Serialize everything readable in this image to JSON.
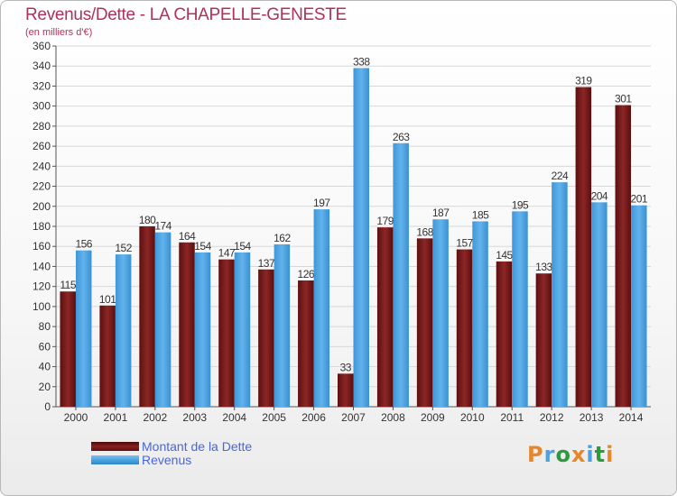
{
  "title": "Revenus/Dette - LA CHAPELLE-GENESTE",
  "subtitle": "(en milliers d'€)",
  "colors": {
    "dette": "#7a1e1e",
    "revenus": "#4aa3e0",
    "title": "#b0305a",
    "legend_text": "#4a66d8"
  },
  "chart_data": {
    "type": "bar",
    "categories": [
      "2000",
      "2001",
      "2002",
      "2003",
      "2004",
      "2005",
      "2006",
      "2007",
      "2008",
      "2009",
      "2010",
      "2011",
      "2012",
      "2013",
      "2014"
    ],
    "series": [
      {
        "name": "Montant de la Dette",
        "values": [
          115,
          101,
          180,
          164,
          147,
          137,
          126,
          33,
          179,
          168,
          157,
          145,
          133,
          319,
          301
        ]
      },
      {
        "name": "Revenus",
        "values": [
          156,
          152,
          174,
          154,
          154,
          162,
          197,
          338,
          263,
          187,
          185,
          195,
          224,
          204,
          201
        ]
      }
    ],
    "ylim": [
      0,
      360
    ],
    "ytick_step": 20,
    "grid": true,
    "legend": "bottom-left"
  },
  "legend": {
    "items": [
      "Montant de la Dette",
      "Revenus"
    ]
  },
  "logo": {
    "letters": [
      "P",
      "r",
      "o",
      "x",
      "i",
      "t",
      "i"
    ],
    "colors": [
      "#e8862a",
      "#4aa3e0",
      "#2e9a3e",
      "#e8862a",
      "#4aa3e0",
      "#2e9a3e",
      "#e8862a"
    ]
  }
}
